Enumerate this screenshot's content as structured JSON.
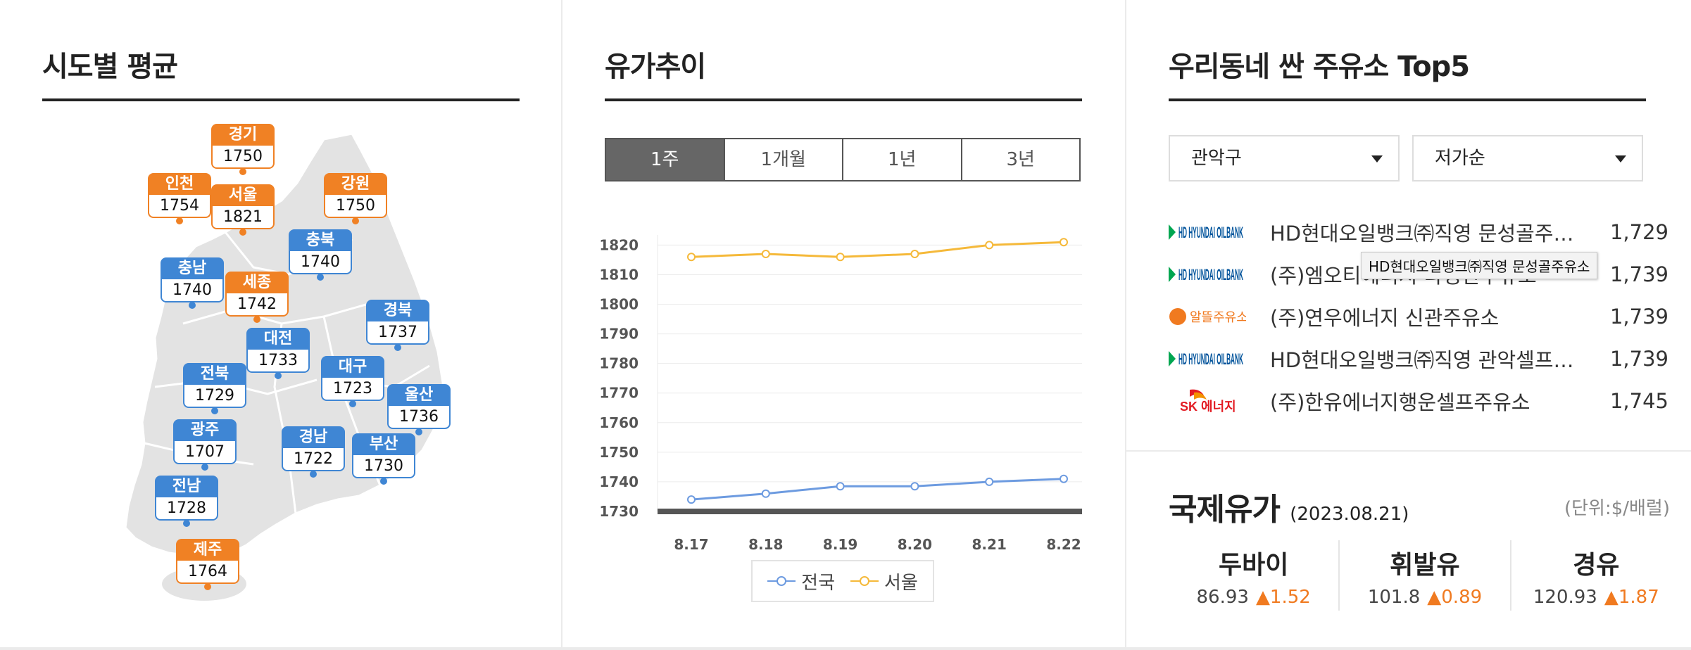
{
  "map_panel": {
    "title": "시도별 평균",
    "regions": [
      {
        "name": "경기",
        "price": "1750",
        "color": "orange"
      },
      {
        "name": "인천",
        "price": "1754",
        "color": "orange"
      },
      {
        "name": "서울",
        "price": "1821",
        "color": "orange"
      },
      {
        "name": "강원",
        "price": "1750",
        "color": "orange"
      },
      {
        "name": "충북",
        "price": "1740",
        "color": "blue"
      },
      {
        "name": "충남",
        "price": "1740",
        "color": "blue"
      },
      {
        "name": "세종",
        "price": "1742",
        "color": "orange"
      },
      {
        "name": "경북",
        "price": "1737",
        "color": "blue"
      },
      {
        "name": "대전",
        "price": "1733",
        "color": "blue"
      },
      {
        "name": "전북",
        "price": "1729",
        "color": "blue"
      },
      {
        "name": "대구",
        "price": "1723",
        "color": "blue"
      },
      {
        "name": "울산",
        "price": "1736",
        "color": "blue"
      },
      {
        "name": "광주",
        "price": "1707",
        "color": "blue"
      },
      {
        "name": "경남",
        "price": "1722",
        "color": "blue"
      },
      {
        "name": "부산",
        "price": "1730",
        "color": "blue"
      },
      {
        "name": "전남",
        "price": "1728",
        "color": "blue"
      },
      {
        "name": "제주",
        "price": "1764",
        "color": "orange"
      }
    ]
  },
  "trend_panel": {
    "title": "유가추이",
    "tabs": [
      "1주",
      "1개월",
      "1년",
      "3년"
    ],
    "active_tab": 0
  },
  "chart_data": {
    "type": "line",
    "x": [
      "8.17",
      "8.18",
      "8.19",
      "8.20",
      "8.21",
      "8.22"
    ],
    "series": [
      {
        "name": "전국",
        "values": [
          1734,
          1736,
          1738.5,
          1738.5,
          1740,
          1741
        ],
        "color": "#6d9be0"
      },
      {
        "name": "서울",
        "values": [
          1816,
          1817,
          1816,
          1817,
          1820,
          1821
        ],
        "color": "#f5b93a"
      }
    ],
    "y_ticks": [
      1730,
      1740,
      1750,
      1760,
      1770,
      1780,
      1790,
      1800,
      1810,
      1820
    ],
    "ylim": [
      1730,
      1822
    ],
    "grid": true,
    "legend_position": "bottom-center"
  },
  "top5_panel": {
    "title": "우리동네 싼 주유소 Top5",
    "district_select": "관악구",
    "sort_select": "저가순",
    "stations": [
      {
        "brand": "HD HYUNDAI OILBANK",
        "logo": "hd-oilbank",
        "name": "HD현대오일뱅크㈜직영 문성골주유소",
        "price": "1,729"
      },
      {
        "brand": "HD HYUNDAI OILBANK",
        "logo": "hd-oilbank",
        "name": "(주)엠오티에너지 다정한주유소",
        "price": "1,739"
      },
      {
        "brand": "알뜰주유소",
        "logo": "altteul",
        "name": "(주)연우에너지 신관주유소",
        "price": "1,739"
      },
      {
        "brand": "HD HYUNDAI OILBANK",
        "logo": "hd-oilbank",
        "name": "HD현대오일뱅크㈜직영 관악셀프주유소",
        "price": "1,739"
      },
      {
        "brand": "SK 에너지",
        "logo": "sk-energy",
        "name": "(주)한유에너지행운셀프주유소",
        "price": "1,745"
      }
    ],
    "tooltip": "HD현대오일뱅크㈜직영 문성골주유소"
  },
  "intl_panel": {
    "title": "국제유가",
    "date": "(2023.08.21)",
    "unit": "(단위:$/배럴)",
    "items": [
      {
        "name": "두바이",
        "value": "86.93",
        "change": "▲1.52"
      },
      {
        "name": "휘발유",
        "value": "101.8",
        "change": "▲0.89"
      },
      {
        "name": "경유",
        "value": "120.93",
        "change": "▲1.87"
      }
    ]
  },
  "colors": {
    "orange": "#f08124",
    "blue": "#3f86d4",
    "national": "#6d9be0",
    "seoul": "#f5b93a"
  }
}
